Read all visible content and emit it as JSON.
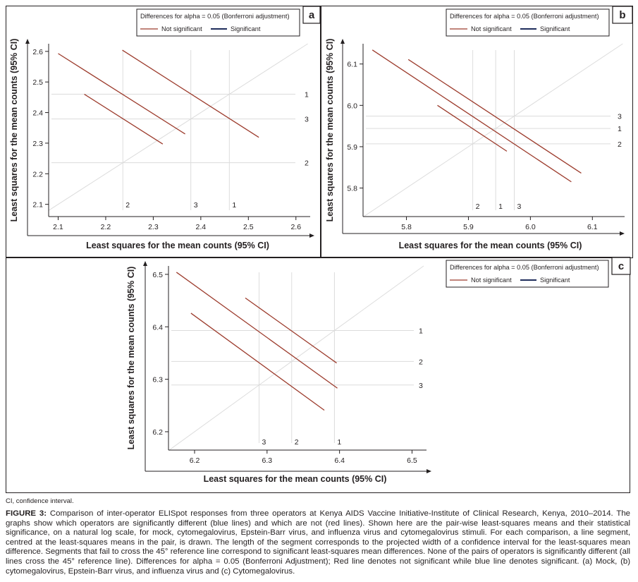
{
  "figure": {
    "note": "CI, confidence interval.",
    "caption_label": "FIGURE 3:",
    "caption_text": "Comparison of inter-operator ELISpot responses from three operators at Kenya AIDS Vaccine Initiative-Institute of Clinical Research, Kenya, 2010–2014. The graphs show which operators are significantly different (blue lines) and which are not (red lines). Shown here are the pair-wise least-squares means and their statistical significance, on a natural log scale, for mock, cytomegalovirus, Epstein-Barr virus, and influenza virus and cytomegalovirus stimuli. For each comparison, a line segment, centred at the least-squares means in the pair, is drawn. The length of the segment corresponds to the projected width of a confidence interval for the least-squares mean difference. Segments that fail to cross the 45° reference line correspond to significant least-squares mean differences. None of the pairs of operators is significantly different (all lines cross the 45° reference line). Differences for alpha = 0.05 (Bonferroni Adjustment); Red line denotes not significant while blue line denotes significant. (a) Mock, (b) cytomegalovirus, Epstein-Barr virus, and influenza virus and (c) Cytomegalovirus."
  },
  "colors": {
    "not_significant": "#9c3b2c",
    "significant": "#1f2d5c",
    "reference": "#dcdcdc",
    "axis": "#231f20"
  },
  "chart_data": [
    {
      "panel": "a",
      "type": "line",
      "title": "",
      "xlabel": "Least squares for the mean counts (95%  CI)",
      "ylabel": "Least squares for the mean counts (95%  CI)",
      "xlim": [
        2.08,
        2.63
      ],
      "ylim": [
        2.06,
        2.625
      ],
      "xticks": [
        2.1,
        2.2,
        2.3,
        2.4,
        2.5,
        2.6
      ],
      "xtick_labels": [
        "2.1",
        "2.2",
        "2.3",
        "2.4",
        "2.5",
        "2.6"
      ],
      "yticks": [
        2.1,
        2.2,
        2.3,
        2.4,
        2.5,
        2.6
      ],
      "ytick_labels": [
        "2.1",
        "2.2",
        "2.3",
        "2.4",
        "2.5",
        "2.6"
      ],
      "legend": {
        "title": "Differences for alpha = 0.05 (Bonferroni adjustment)",
        "entries": [
          "Not significant",
          "Significant"
        ],
        "placement": "top-right"
      },
      "operator_means": [
        {
          "label": "1",
          "value": 2.46
        },
        {
          "label": "2",
          "value": 2.236
        },
        {
          "label": "3",
          "value": 2.379
        }
      ],
      "segments": [
        {
          "pair": "1-2",
          "x": [
            2.235,
            2.522
          ],
          "y": [
            2.604,
            2.319
          ],
          "significant": false
        },
        {
          "pair": "1-3",
          "x": [
            2.1,
            2.367
          ],
          "y": [
            2.593,
            2.33
          ],
          "significant": false
        },
        {
          "pair": "2-3",
          "x": [
            2.155,
            2.32
          ],
          "y": [
            2.46,
            2.297
          ],
          "significant": false
        }
      ],
      "grid": false
    },
    {
      "panel": "b",
      "type": "line",
      "title": "",
      "xlabel": "Least squares for the mean counts (95%  CI)",
      "ylabel": "Least squares for the mean counts (95%  CI)",
      "xlim": [
        5.73,
        6.152
      ],
      "ylim": [
        5.731,
        6.149
      ],
      "xticks": [
        5.8,
        5.9,
        6.0,
        6.1
      ],
      "xtick_labels": [
        "5.8",
        "5.9",
        "6.0",
        "6.1"
      ],
      "yticks": [
        5.8,
        5.9,
        6.0,
        6.1
      ],
      "ytick_labels": [
        "5.8",
        "5.9",
        "6.0",
        "6.1"
      ],
      "legend": {
        "title": "Differences for alpha = 0.05 (Bonferroni adjustment)",
        "entries": [
          "Not significant",
          "Significant"
        ],
        "placement": "top-right"
      },
      "operator_means": [
        {
          "label": "1",
          "value": 5.944
        },
        {
          "label": "2",
          "value": 5.907
        },
        {
          "label": "3",
          "value": 5.974
        }
      ],
      "segments": [
        {
          "pair": "1-2",
          "x": [
            5.745,
            6.066
          ],
          "y": [
            6.134,
            5.815
          ],
          "significant": false
        },
        {
          "pair": "1-3",
          "x": [
            5.803,
            6.082
          ],
          "y": [
            6.111,
            5.836
          ],
          "significant": false
        },
        {
          "pair": "2-3",
          "x": [
            5.85,
            5.962
          ],
          "y": [
            6.0,
            5.889
          ],
          "significant": false
        }
      ],
      "grid": false
    },
    {
      "panel": "c",
      "type": "line",
      "title": "",
      "xlabel": "Least squares for the mean counts (95%  CI)",
      "ylabel": "Least squares for the mean counts (95%  CI)",
      "xlim": [
        6.164,
        6.52
      ],
      "ylim": [
        6.165,
        6.516
      ],
      "xticks": [
        6.2,
        6.3,
        6.4,
        6.5
      ],
      "xtick_labels": [
        "6.2",
        "6.3",
        "6.4",
        "6.5"
      ],
      "yticks": [
        6.2,
        6.3,
        6.4,
        6.5
      ],
      "ytick_labels": [
        "6.2",
        "6.3",
        "6.4",
        "6.5"
      ],
      "legend": {
        "title": "Differences for alpha = 0.05 (Bonferroni adjustment)",
        "entries": [
          "Not significant",
          "Significant"
        ],
        "placement": "top-right"
      },
      "operator_means": [
        {
          "label": "1",
          "value": 6.393
        },
        {
          "label": "2",
          "value": 6.334
        },
        {
          "label": "3",
          "value": 6.289
        }
      ],
      "segments": [
        {
          "pair": "1-3",
          "x": [
            6.175,
            6.397
          ],
          "y": [
            6.504,
            6.283
          ],
          "significant": false
        },
        {
          "pair": "1-2",
          "x": [
            6.27,
            6.396
          ],
          "y": [
            6.455,
            6.331
          ],
          "significant": false
        },
        {
          "pair": "2-3",
          "x": [
            6.195,
            6.379
          ],
          "y": [
            6.426,
            6.241
          ],
          "significant": false
        }
      ],
      "grid": false
    }
  ]
}
